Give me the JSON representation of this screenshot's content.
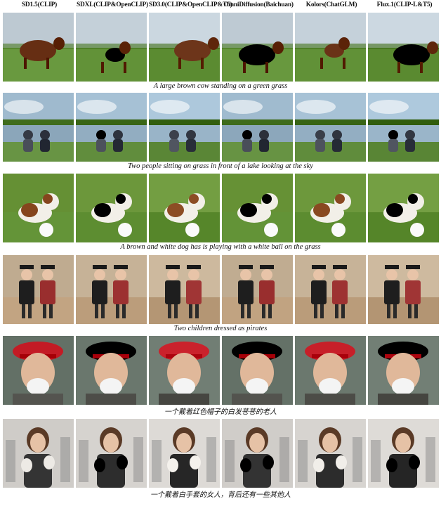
{
  "columns": [
    "SD1.5(CLIP)",
    "SDXL(CLIP&OpenCLIP)",
    "SD3.0(CLIP&OpenCLIP&T5)",
    "OmniDiffusion(Baichuan)",
    "Kolors(ChatGLM)",
    "Flux.1(CLIP-L&T5)"
  ],
  "rows": [
    {
      "caption": "A large brown cow standing on a green grass",
      "scene": "cow",
      "palette": {
        "sky": "#c7d3dc",
        "ground": "#5f8f35",
        "subject": "#6b3318"
      }
    },
    {
      "caption": "Two people sitting on grass in front of a lake looking at the sky",
      "scene": "lake",
      "palette": {
        "sky": "#a9c4d8",
        "ground": "#5e8a3a",
        "subject": "#3a3f4a"
      }
    },
    {
      "caption": "A brown and white dog has is playing with a white ball on the grass",
      "scene": "dog",
      "palette": {
        "sky": "#6f9a3e",
        "ground": "#5a8a2e",
        "subject": "#8a4a22"
      }
    },
    {
      "caption": "Two children dressed as pirates",
      "scene": "pirates",
      "palette": {
        "sky": "#c9b59a",
        "ground": "#b89a78",
        "subject": "#8a1f1f"
      }
    },
    {
      "caption": "一个戴着红色帽子的白发苍苍的老人",
      "scene": "oldman",
      "zh": true,
      "palette": {
        "sky": "#6d7a70",
        "ground": "#4a4a45",
        "subject": "#c8202a"
      }
    },
    {
      "caption": "一个戴着白手套的女人，背后还有一些其他人",
      "scene": "woman",
      "zh": true,
      "palette": {
        "sky": "#d9d6d2",
        "ground": "#2a2a2a",
        "subject": "#f2efea"
      }
    }
  ]
}
